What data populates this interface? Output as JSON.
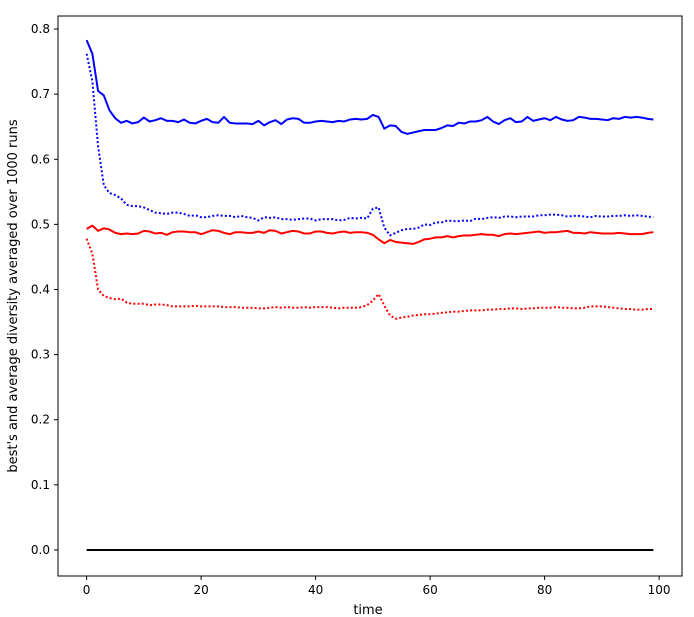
{
  "chart_data": {
    "type": "line",
    "xlabel": "time",
    "ylabel": "best's and average diversity averaged over 1000 runs",
    "xlim": [
      -5,
      104
    ],
    "ylim": [
      -0.04,
      0.82
    ],
    "xticks": [
      0,
      20,
      40,
      60,
      80,
      100
    ],
    "xtick_labels": [
      "0",
      "20",
      "40",
      "60",
      "80",
      "100"
    ],
    "yticks": [
      0.0,
      0.1,
      0.2,
      0.3,
      0.4,
      0.5,
      0.6,
      0.7,
      0.8
    ],
    "ytick_labels": [
      "0.0",
      "0.1",
      "0.2",
      "0.3",
      "0.4",
      "0.5",
      "0.6",
      "0.7",
      "0.8"
    ],
    "grid": false,
    "legend": "none",
    "x": {
      "start": 0,
      "step": 1,
      "count": 100
    },
    "series": [
      {
        "color": "#0000ff",
        "style": "solid",
        "values": [
          0.783,
          0.762,
          0.705,
          0.698,
          0.675,
          0.663,
          0.656,
          0.659,
          0.655,
          0.657,
          0.664,
          0.658,
          0.66,
          0.663,
          0.659,
          0.659,
          0.657,
          0.661,
          0.656,
          0.655,
          0.659,
          0.662,
          0.657,
          0.656,
          0.665,
          0.656,
          0.655,
          0.655,
          0.655,
          0.654,
          0.659,
          0.652,
          0.657,
          0.66,
          0.654,
          0.661,
          0.663,
          0.662,
          0.656,
          0.656,
          0.658,
          0.659,
          0.658,
          0.657,
          0.659,
          0.658,
          0.661,
          0.662,
          0.661,
          0.662,
          0.668,
          0.665,
          0.647,
          0.652,
          0.651,
          0.642,
          0.639,
          0.641,
          0.643,
          0.645,
          0.645,
          0.645,
          0.648,
          0.652,
          0.651,
          0.656,
          0.655,
          0.658,
          0.658,
          0.66,
          0.665,
          0.658,
          0.654,
          0.66,
          0.663,
          0.657,
          0.658,
          0.665,
          0.659,
          0.661,
          0.663,
          0.66,
          0.665,
          0.661,
          0.659,
          0.66,
          0.665,
          0.664,
          0.662,
          0.662,
          0.661,
          0.66,
          0.663,
          0.662,
          0.665,
          0.664,
          0.665,
          0.664,
          0.662,
          0.661
        ]
      },
      {
        "color": "#0000ff",
        "style": "dotted",
        "values": [
          0.762,
          0.72,
          0.62,
          0.56,
          0.548,
          0.545,
          0.54,
          0.53,
          0.528,
          0.528,
          0.526,
          0.522,
          0.518,
          0.517,
          0.516,
          0.518,
          0.518,
          0.516,
          0.513,
          0.514,
          0.511,
          0.511,
          0.513,
          0.514,
          0.513,
          0.513,
          0.511,
          0.513,
          0.511,
          0.51,
          0.506,
          0.511,
          0.51,
          0.511,
          0.508,
          0.508,
          0.507,
          0.508,
          0.509,
          0.509,
          0.506,
          0.508,
          0.508,
          0.508,
          0.506,
          0.507,
          0.51,
          0.509,
          0.51,
          0.509,
          0.524,
          0.526,
          0.495,
          0.483,
          0.487,
          0.491,
          0.493,
          0.493,
          0.495,
          0.5,
          0.499,
          0.503,
          0.503,
          0.506,
          0.505,
          0.505,
          0.506,
          0.505,
          0.509,
          0.508,
          0.51,
          0.511,
          0.51,
          0.512,
          0.512,
          0.511,
          0.512,
          0.512,
          0.512,
          0.514,
          0.514,
          0.515,
          0.515,
          0.514,
          0.512,
          0.513,
          0.513,
          0.512,
          0.511,
          0.513,
          0.512,
          0.512,
          0.513,
          0.513,
          0.514,
          0.513,
          0.514,
          0.513,
          0.512,
          0.511
        ]
      },
      {
        "color": "#ff0000",
        "style": "solid",
        "values": [
          0.493,
          0.498,
          0.49,
          0.494,
          0.492,
          0.487,
          0.485,
          0.486,
          0.485,
          0.486,
          0.49,
          0.489,
          0.486,
          0.487,
          0.484,
          0.488,
          0.489,
          0.489,
          0.488,
          0.488,
          0.485,
          0.488,
          0.491,
          0.49,
          0.487,
          0.485,
          0.488,
          0.488,
          0.487,
          0.487,
          0.489,
          0.487,
          0.491,
          0.49,
          0.486,
          0.488,
          0.49,
          0.489,
          0.486,
          0.486,
          0.489,
          0.489,
          0.487,
          0.486,
          0.488,
          0.489,
          0.487,
          0.488,
          0.488,
          0.487,
          0.484,
          0.477,
          0.471,
          0.476,
          0.473,
          0.472,
          0.471,
          0.47,
          0.473,
          0.477,
          0.478,
          0.48,
          0.48,
          0.482,
          0.48,
          0.482,
          0.483,
          0.483,
          0.484,
          0.485,
          0.484,
          0.484,
          0.482,
          0.485,
          0.486,
          0.485,
          0.486,
          0.487,
          0.488,
          0.489,
          0.487,
          0.488,
          0.488,
          0.489,
          0.49,
          0.487,
          0.487,
          0.486,
          0.488,
          0.487,
          0.486,
          0.486,
          0.486,
          0.487,
          0.486,
          0.485,
          0.485,
          0.485,
          0.487,
          0.488
        ]
      },
      {
        "color": "#ff0000",
        "style": "dotted",
        "values": [
          0.478,
          0.455,
          0.4,
          0.39,
          0.387,
          0.385,
          0.386,
          0.38,
          0.378,
          0.378,
          0.378,
          0.376,
          0.377,
          0.377,
          0.376,
          0.374,
          0.374,
          0.374,
          0.374,
          0.375,
          0.374,
          0.374,
          0.374,
          0.374,
          0.373,
          0.373,
          0.373,
          0.372,
          0.372,
          0.372,
          0.371,
          0.371,
          0.372,
          0.373,
          0.372,
          0.373,
          0.372,
          0.372,
          0.373,
          0.372,
          0.373,
          0.373,
          0.373,
          0.372,
          0.371,
          0.372,
          0.372,
          0.372,
          0.373,
          0.376,
          0.383,
          0.393,
          0.375,
          0.36,
          0.355,
          0.357,
          0.358,
          0.36,
          0.361,
          0.362,
          0.362,
          0.363,
          0.364,
          0.365,
          0.366,
          0.366,
          0.367,
          0.368,
          0.368,
          0.368,
          0.369,
          0.369,
          0.37,
          0.37,
          0.371,
          0.371,
          0.37,
          0.371,
          0.371,
          0.372,
          0.372,
          0.372,
          0.373,
          0.372,
          0.372,
          0.371,
          0.371,
          0.372,
          0.374,
          0.374,
          0.374,
          0.373,
          0.372,
          0.371,
          0.37,
          0.37,
          0.369,
          0.369,
          0.37,
          0.37
        ]
      },
      {
        "color": "#000000",
        "style": "solid",
        "values": [
          0,
          0,
          0,
          0,
          0,
          0,
          0,
          0,
          0,
          0,
          0,
          0,
          0,
          0,
          0,
          0,
          0,
          0,
          0,
          0,
          0,
          0,
          0,
          0,
          0,
          0,
          0,
          0,
          0,
          0,
          0,
          0,
          0,
          0,
          0,
          0,
          0,
          0,
          0,
          0,
          0,
          0,
          0,
          0,
          0,
          0,
          0,
          0,
          0,
          0,
          0,
          0,
          0,
          0,
          0,
          0,
          0,
          0,
          0,
          0,
          0,
          0,
          0,
          0,
          0,
          0,
          0,
          0,
          0,
          0,
          0,
          0,
          0,
          0,
          0,
          0,
          0,
          0,
          0,
          0,
          0,
          0,
          0,
          0,
          0,
          0,
          0,
          0,
          0,
          0,
          0,
          0,
          0,
          0,
          0,
          0,
          0,
          0,
          0,
          0
        ]
      }
    ]
  }
}
